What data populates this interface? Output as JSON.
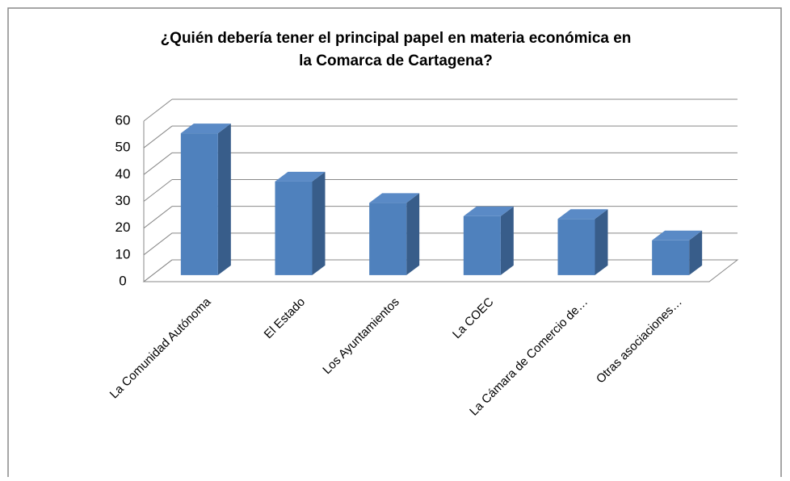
{
  "chart_data": {
    "type": "bar3d",
    "title": [
      "¿Quién debería tener el principal papel en materia económica en",
      "la Comarca de Cartagena?"
    ],
    "categories": [
      "La Comunidad Autónoma",
      "El Estado",
      "Los Ayuntamientos",
      "La COEC",
      "La Cámara de Comercio de…",
      "Otras asociaciones…"
    ],
    "values": [
      53,
      35,
      27,
      22,
      21,
      13
    ],
    "color": "#4f81bd",
    "ylim": [
      0,
      60
    ],
    "yticks": [
      0,
      10,
      20,
      30,
      40,
      50,
      60
    ],
    "grid": true
  }
}
